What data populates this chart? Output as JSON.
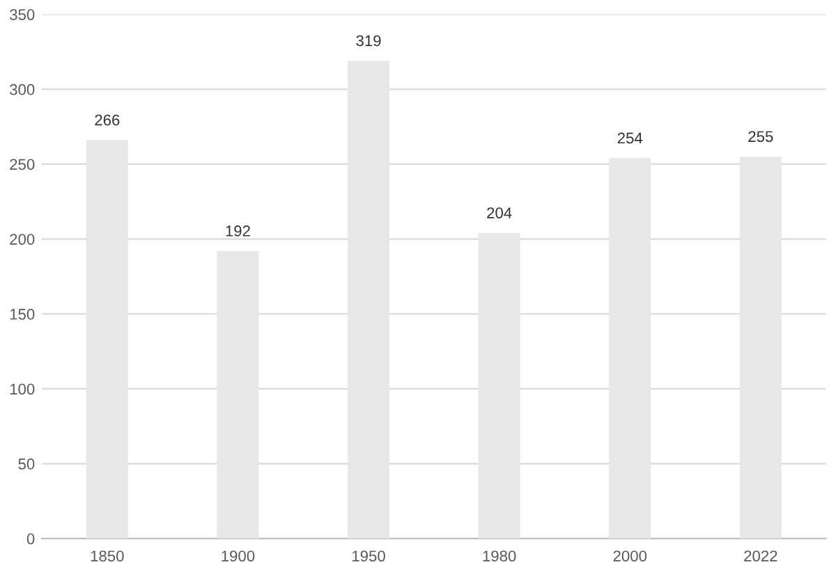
{
  "chart_data": {
    "type": "bar",
    "categories": [
      "1850",
      "1900",
      "1950",
      "1980",
      "2000",
      "2022"
    ],
    "values": [
      266,
      192,
      319,
      204,
      254,
      255
    ],
    "color": "#e7e7e7",
    "ylim": [
      0,
      350
    ],
    "yticks": [
      0,
      50,
      100,
      150,
      200,
      250,
      300,
      350
    ],
    "grid": "y",
    "data_labels": true
  }
}
